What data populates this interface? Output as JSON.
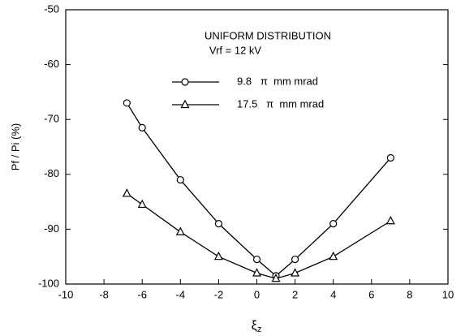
{
  "chart_data": {
    "type": "line",
    "title": "UNIFORM DISTRIBUTION",
    "subtitle": "Vrf = 12 kV",
    "ylabel": "Pf / Pi  (%)",
    "xlabel": "ξ",
    "xlabel_sub": "z",
    "x": [
      -6.8,
      -6,
      -4,
      -2,
      0,
      1,
      2,
      4,
      7
    ],
    "series": [
      {
        "name": "9.8   π  mm mrad",
        "marker": "circle",
        "color": "#000000",
        "values": [
          -67,
          -71.5,
          -81,
          -89,
          -95.5,
          -98.5,
          -95.5,
          -89,
          -77
        ]
      },
      {
        "name": "17.5   π  mm mrad",
        "marker": "triangle",
        "color": "#000000",
        "values": [
          -83.5,
          -85.5,
          -90.5,
          -95,
          -98,
          -99,
          -98,
          -95,
          -88.5
        ]
      }
    ],
    "xlim": [
      -10,
      10
    ],
    "xticks": [
      -10,
      -8,
      -6,
      -4,
      -2,
      0,
      2,
      4,
      6,
      8,
      10
    ],
    "ylim": [
      -100,
      -50
    ],
    "yticks": [
      -100,
      -90,
      -80,
      -70,
      -60,
      -50
    ],
    "grid": false
  }
}
